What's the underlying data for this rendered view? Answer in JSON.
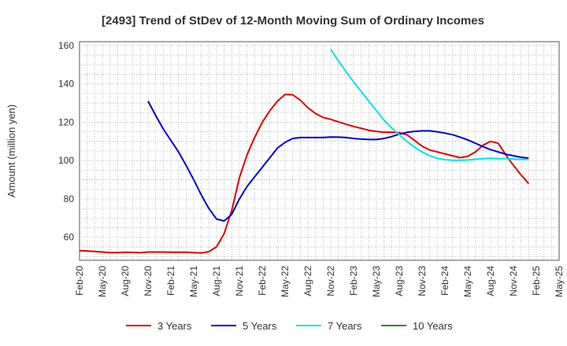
{
  "chart_data": {
    "type": "line",
    "title": "[2493]  Trend of StDev of 12-Month Moving Sum of Ordinary Incomes",
    "xlabel": "",
    "ylabel": "Amount (million yen)",
    "ylim": [
      48,
      162
    ],
    "yticks": [
      60,
      80,
      100,
      120,
      140,
      160
    ],
    "x_tick_labels": [
      "Feb-20",
      "May-20",
      "Aug-20",
      "Nov-20",
      "Feb-21",
      "May-21",
      "Aug-21",
      "Nov-21",
      "Feb-22",
      "May-22",
      "Aug-22",
      "Nov-22",
      "Feb-23",
      "May-23",
      "Aug-23",
      "Nov-23",
      "Feb-24",
      "May-24",
      "Aug-24",
      "Nov-24",
      "Feb-25",
      "May-25"
    ],
    "x_start": "Feb-20",
    "x_end": "May-25",
    "grid": true,
    "legend_position": "bottom",
    "series": [
      {
        "name": "3 Years",
        "color": "#dd0000",
        "start": "Feb-20",
        "values": [
          53,
          52.8,
          52.6,
          52.3,
          52,
          52,
          52.2,
          52.1,
          52,
          52.3,
          52.3,
          52.3,
          52.2,
          52.2,
          52.2,
          52,
          51.8,
          52.5,
          55,
          62,
          74,
          91,
          103,
          112,
          120,
          126,
          131,
          134.5,
          134.3,
          131.5,
          127.5,
          124.5,
          122.5,
          121.5,
          120.2,
          119,
          117.8,
          116.8,
          115.8,
          115.2,
          114.8,
          114.8,
          114.5,
          113.5,
          110.5,
          107.5,
          105.5,
          104.5,
          103.5,
          102.5,
          101.5,
          102.2,
          104.5,
          108,
          110,
          109,
          103,
          97.5,
          92.5,
          88
        ]
      },
      {
        "name": "5 Years",
        "color": "#0000cc",
        "start": "Feb-20",
        "values": [
          null,
          null,
          null,
          null,
          null,
          null,
          null,
          null,
          null,
          131,
          123.5,
          116.5,
          110.5,
          104.5,
          97.5,
          90,
          82,
          75,
          69.5,
          68.5,
          72,
          80,
          86.5,
          91.5,
          96.5,
          101.5,
          106.5,
          109.5,
          111.5,
          112,
          112,
          112,
          112,
          112.3,
          112.2,
          112,
          111.5,
          111.2,
          111,
          111,
          111.5,
          112.5,
          113.8,
          114.7,
          115.2,
          115.5,
          115.5,
          115,
          114.3,
          113.5,
          112.2,
          110.8,
          109,
          107.3,
          105.7,
          104.5,
          103.3,
          102.5,
          101.7,
          101.3
        ]
      },
      {
        "name": "7 Years",
        "color": "#00e5e5",
        "start": "Feb-20",
        "values": [
          null,
          null,
          null,
          null,
          null,
          null,
          null,
          null,
          null,
          null,
          null,
          null,
          null,
          null,
          null,
          null,
          null,
          null,
          null,
          null,
          null,
          null,
          null,
          null,
          null,
          null,
          null,
          null,
          null,
          null,
          null,
          null,
          null,
          158,
          152,
          146.5,
          141,
          136,
          131,
          126,
          121,
          117,
          113.5,
          110,
          107,
          104.5,
          102.5,
          101.2,
          100.5,
          100.2,
          100.2,
          100.3,
          100.7,
          101,
          101.2,
          101,
          101,
          100.8,
          100.7,
          100.6
        ]
      },
      {
        "name": "10 Years",
        "color": "#228b22",
        "start": "Feb-20",
        "values": []
      }
    ]
  }
}
